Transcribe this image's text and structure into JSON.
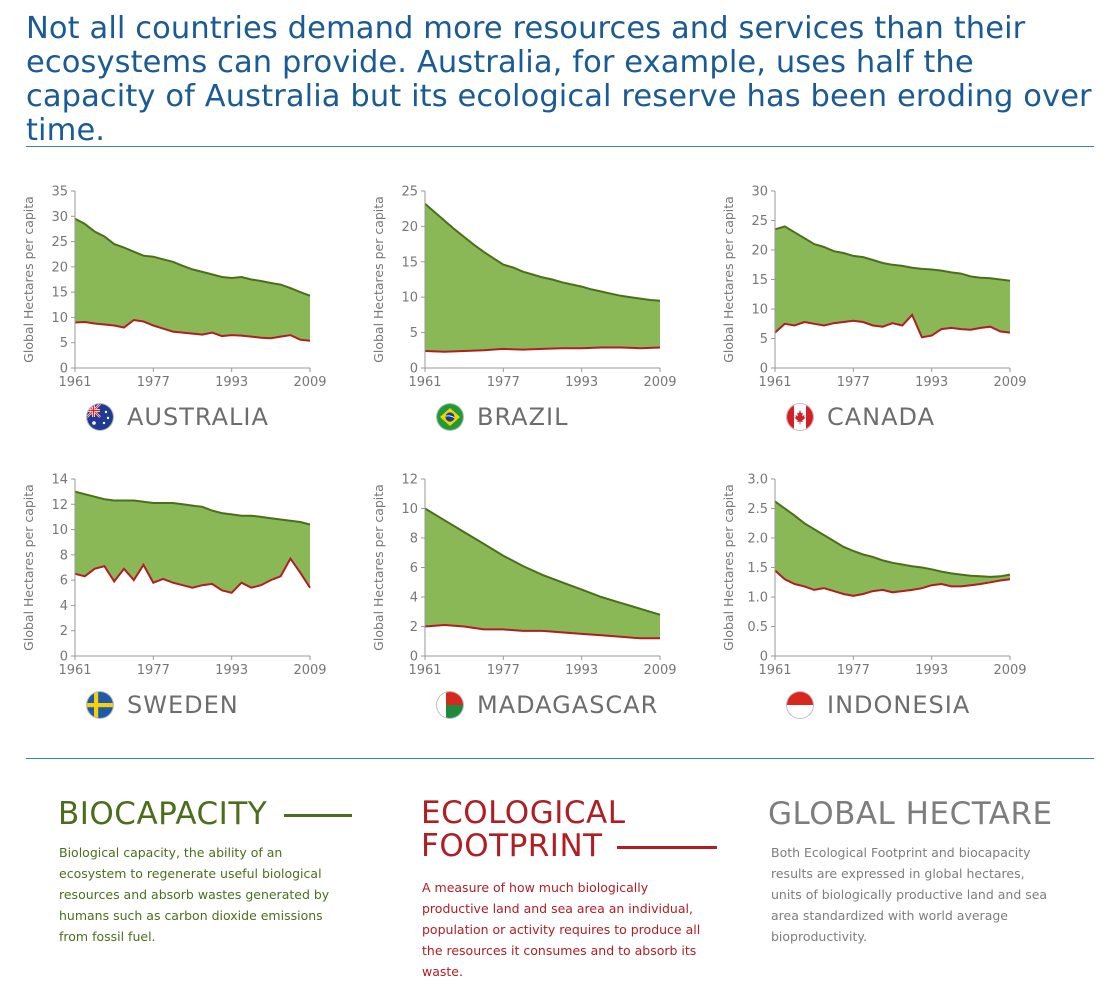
{
  "headline": "Not all countries demand more resources and services than their ecosystems can provide. Australia, for example, uses half the capacity of Australia but its ecological reserve has been eroding over time.",
  "colors": {
    "headline": "#1a5a95",
    "rule": "#3f7fb5",
    "biocapacity_fill": "#8ab856",
    "biocapacity_line": "#4c6e1c",
    "footprint_line": "#b01e23",
    "axis_text": "#777777",
    "hectare_title": "#7d7d7d",
    "hectare_text": "#7d7d7d"
  },
  "legend": {
    "biocapacity": {
      "title": "BIOCAPACITY",
      "text": "Biological capacity, the ability of an ecosystem to regenerate useful biological resources and absorb wastes generated by humans such as carbon dioxide emissions from fossil fuel."
    },
    "footprint": {
      "title_line1": "ECOLOGICAL",
      "title_line2": "FOOTPRINT",
      "text": "A measure of how much biologically productive land and sea area an individual, population or activity requires to produce all the resources it consumes and to absorb its waste."
    },
    "hectare": {
      "title": "GLOBAL HECTARE",
      "text": "Both Ecological Footprint and biocapacity results are expressed in global hectares, units of biologically productive land and sea area standardized with world average bioproductivity."
    }
  },
  "chart_data": [
    {
      "type": "area",
      "country": "AUSTRALIA",
      "flag": "australia-flag-icon",
      "ylabel": "Global Hectares per capita",
      "xticks": [
        1961,
        1977,
        1993,
        2009
      ],
      "xlim": [
        1961,
        2009
      ],
      "ylim": [
        0,
        35
      ],
      "yticks": [
        0,
        5,
        10,
        15,
        20,
        25,
        30,
        35
      ],
      "grid": false,
      "series": [
        {
          "name": "BIOCAPACITY",
          "x": [
            1961,
            1963,
            1965,
            1967,
            1969,
            1971,
            1973,
            1975,
            1977,
            1979,
            1981,
            1983,
            1985,
            1987,
            1989,
            1991,
            1993,
            1995,
            1997,
            1999,
            2001,
            2003,
            2005,
            2007,
            2009
          ],
          "values": [
            29.5,
            28.5,
            27,
            26,
            24.5,
            23.8,
            23,
            22.2,
            22,
            21.5,
            21,
            20.2,
            19.5,
            19,
            18.5,
            18,
            17.8,
            18,
            17.5,
            17.2,
            16.8,
            16.5,
            15.8,
            15,
            14.3
          ]
        },
        {
          "name": "ECOLOGICAL FOOTPRINT",
          "x": [
            1961,
            1963,
            1965,
            1967,
            1969,
            1971,
            1973,
            1975,
            1977,
            1979,
            1981,
            1983,
            1985,
            1987,
            1989,
            1991,
            1993,
            1995,
            1997,
            1999,
            2001,
            2003,
            2005,
            2007,
            2009
          ],
          "values": [
            9,
            9.1,
            8.8,
            8.6,
            8.4,
            8,
            9.5,
            9.2,
            8.4,
            7.8,
            7.2,
            7,
            6.8,
            6.6,
            7,
            6.3,
            6.5,
            6.4,
            6.2,
            6,
            5.9,
            6.2,
            6.5,
            5.6,
            5.4
          ]
        }
      ]
    },
    {
      "type": "area",
      "country": "BRAZIL",
      "flag": "brazil-flag-icon",
      "ylabel": "Global Hectares per capita",
      "xticks": [
        1961,
        1977,
        1993,
        2009
      ],
      "xlim": [
        1961,
        2009
      ],
      "ylim": [
        0,
        25
      ],
      "yticks": [
        0,
        5,
        10,
        15,
        20,
        25
      ],
      "grid": false,
      "series": [
        {
          "name": "BIOCAPACITY",
          "x": [
            1961,
            1963,
            1965,
            1967,
            1969,
            1971,
            1973,
            1975,
            1977,
            1979,
            1981,
            1983,
            1985,
            1987,
            1989,
            1991,
            1993,
            1995,
            1997,
            1999,
            2001,
            2003,
            2005,
            2007,
            2009
          ],
          "values": [
            23.2,
            22,
            20.8,
            19.6,
            18.5,
            17.4,
            16.4,
            15.5,
            14.6,
            14.2,
            13.6,
            13.2,
            12.8,
            12.5,
            12.1,
            11.8,
            11.5,
            11.1,
            10.8,
            10.5,
            10.2,
            10,
            9.8,
            9.6,
            9.5
          ]
        },
        {
          "name": "ECOLOGICAL FOOTPRINT",
          "x": [
            1961,
            1965,
            1969,
            1973,
            1977,
            1981,
            1985,
            1989,
            1993,
            1997,
            2001,
            2005,
            2009
          ],
          "values": [
            2.4,
            2.3,
            2.4,
            2.5,
            2.7,
            2.6,
            2.7,
            2.8,
            2.8,
            2.9,
            2.9,
            2.8,
            2.9
          ]
        }
      ]
    },
    {
      "type": "area",
      "country": "CANADA",
      "flag": "canada-flag-icon",
      "ylabel": "Global Hectares per capita",
      "xticks": [
        1961,
        1977,
        1993,
        2009
      ],
      "xlim": [
        1961,
        2009
      ],
      "ylim": [
        0,
        30
      ],
      "yticks": [
        0,
        5,
        10,
        15,
        20,
        25,
        30
      ],
      "grid": false,
      "series": [
        {
          "name": "BIOCAPACITY",
          "x": [
            1961,
            1963,
            1965,
            1967,
            1969,
            1971,
            1973,
            1975,
            1977,
            1979,
            1981,
            1983,
            1985,
            1987,
            1989,
            1991,
            1993,
            1995,
            1997,
            1999,
            2001,
            2003,
            2005,
            2007,
            2009
          ],
          "values": [
            23.5,
            24,
            23,
            22,
            21,
            20.5,
            19.8,
            19.5,
            19,
            18.8,
            18.3,
            17.8,
            17.5,
            17.3,
            17,
            16.8,
            16.7,
            16.5,
            16.2,
            16,
            15.5,
            15.3,
            15.2,
            15,
            14.8
          ]
        },
        {
          "name": "ECOLOGICAL FOOTPRINT",
          "x": [
            1961,
            1963,
            1965,
            1967,
            1969,
            1971,
            1973,
            1975,
            1977,
            1979,
            1981,
            1983,
            1985,
            1987,
            1989,
            1991,
            1993,
            1995,
            1997,
            1999,
            2001,
            2003,
            2005,
            2007,
            2009
          ],
          "values": [
            6,
            7.5,
            7.2,
            7.8,
            7.5,
            7.2,
            7.6,
            7.8,
            8,
            7.8,
            7.2,
            7,
            7.6,
            7.2,
            9,
            5.2,
            5.5,
            6.6,
            6.8,
            6.6,
            6.5,
            6.8,
            7,
            6.2,
            6
          ]
        }
      ]
    },
    {
      "type": "area",
      "country": "SWEDEN",
      "flag": "sweden-flag-icon",
      "ylabel": "Global Hectares per capita",
      "xticks": [
        1961,
        1977,
        1993,
        2009
      ],
      "xlim": [
        1961,
        2009
      ],
      "ylim": [
        0,
        14
      ],
      "yticks": [
        0,
        2,
        4,
        6,
        8,
        10,
        12,
        14
      ],
      "grid": false,
      "series": [
        {
          "name": "BIOCAPACITY",
          "x": [
            1961,
            1963,
            1965,
            1967,
            1969,
            1971,
            1973,
            1975,
            1977,
            1979,
            1981,
            1983,
            1985,
            1987,
            1989,
            1991,
            1993,
            1995,
            1997,
            1999,
            2001,
            2003,
            2005,
            2007,
            2009
          ],
          "values": [
            13,
            12.8,
            12.6,
            12.4,
            12.3,
            12.3,
            12.3,
            12.2,
            12.1,
            12.1,
            12.1,
            12,
            11.9,
            11.8,
            11.5,
            11.3,
            11.2,
            11.1,
            11.1,
            11.0,
            10.9,
            10.8,
            10.7,
            10.6,
            10.4
          ]
        },
        {
          "name": "ECOLOGICAL FOOTPRINT",
          "x": [
            1961,
            1963,
            1965,
            1967,
            1969,
            1971,
            1973,
            1975,
            1977,
            1979,
            1981,
            1983,
            1985,
            1987,
            1989,
            1991,
            1993,
            1995,
            1997,
            1999,
            2001,
            2003,
            2005,
            2007,
            2009
          ],
          "values": [
            6.5,
            6.3,
            6.9,
            7.1,
            5.9,
            6.9,
            6,
            7.2,
            5.8,
            6.1,
            5.8,
            5.6,
            5.4,
            5.6,
            5.7,
            5.2,
            5.0,
            5.8,
            5.4,
            5.6,
            6.0,
            6.3,
            7.7,
            6.6,
            5.4
          ]
        }
      ]
    },
    {
      "type": "area",
      "country": "MADAGASCAR",
      "flag": "madagascar-flag-icon",
      "ylabel": "Global Hectares per capita",
      "xticks": [
        1961,
        1977,
        1993,
        2009
      ],
      "xlim": [
        1961,
        2009
      ],
      "ylim": [
        0,
        12
      ],
      "yticks": [
        0,
        2,
        4,
        6,
        8,
        10,
        12
      ],
      "grid": false,
      "series": [
        {
          "name": "BIOCAPACITY",
          "x": [
            1961,
            1965,
            1969,
            1973,
            1977,
            1981,
            1985,
            1989,
            1993,
            1997,
            2001,
            2005,
            2009
          ],
          "values": [
            10,
            9.2,
            8.4,
            7.6,
            6.8,
            6.1,
            5.5,
            5,
            4.5,
            4,
            3.6,
            3.2,
            2.8
          ]
        },
        {
          "name": "ECOLOGICAL FOOTPRINT",
          "x": [
            1961,
            1965,
            1969,
            1973,
            1977,
            1981,
            1985,
            1989,
            1993,
            1997,
            2001,
            2005,
            2009
          ],
          "values": [
            2,
            2.1,
            2,
            1.8,
            1.8,
            1.7,
            1.7,
            1.6,
            1.5,
            1.4,
            1.3,
            1.2,
            1.2
          ]
        }
      ]
    },
    {
      "type": "area",
      "country": "INDONESIA",
      "flag": "indonesia-flag-icon",
      "ylabel": "Global Hectares per capita",
      "xticks": [
        1961,
        1977,
        1993,
        2009
      ],
      "xlim": [
        1961,
        2009
      ],
      "ylim": [
        0,
        3.0
      ],
      "yticks": [
        "0",
        "0.5",
        "1.0",
        "1.5",
        "2.0",
        "2.5",
        "3.0"
      ],
      "grid": false,
      "series": [
        {
          "name": "BIOCAPACITY",
          "x": [
            1961,
            1963,
            1965,
            1967,
            1969,
            1971,
            1973,
            1975,
            1977,
            1979,
            1981,
            1983,
            1985,
            1987,
            1989,
            1991,
            1993,
            1995,
            1997,
            1999,
            2001,
            2003,
            2005,
            2007,
            2009
          ],
          "values": [
            2.62,
            2.5,
            2.38,
            2.25,
            2.15,
            2.05,
            1.95,
            1.85,
            1.78,
            1.72,
            1.68,
            1.62,
            1.58,
            1.55,
            1.52,
            1.5,
            1.47,
            1.43,
            1.4,
            1.38,
            1.36,
            1.35,
            1.34,
            1.35,
            1.38
          ]
        },
        {
          "name": "ECOLOGICAL FOOTPRINT",
          "x": [
            1961,
            1963,
            1965,
            1967,
            1969,
            1971,
            1973,
            1975,
            1977,
            1979,
            1981,
            1983,
            1985,
            1987,
            1989,
            1991,
            1993,
            1995,
            1997,
            1999,
            2001,
            2003,
            2005,
            2007,
            2009
          ],
          "values": [
            1.45,
            1.3,
            1.22,
            1.18,
            1.12,
            1.15,
            1.1,
            1.05,
            1.02,
            1.05,
            1.1,
            1.12,
            1.08,
            1.1,
            1.12,
            1.15,
            1.2,
            1.22,
            1.18,
            1.18,
            1.2,
            1.22,
            1.25,
            1.28,
            1.3
          ]
        }
      ]
    }
  ]
}
